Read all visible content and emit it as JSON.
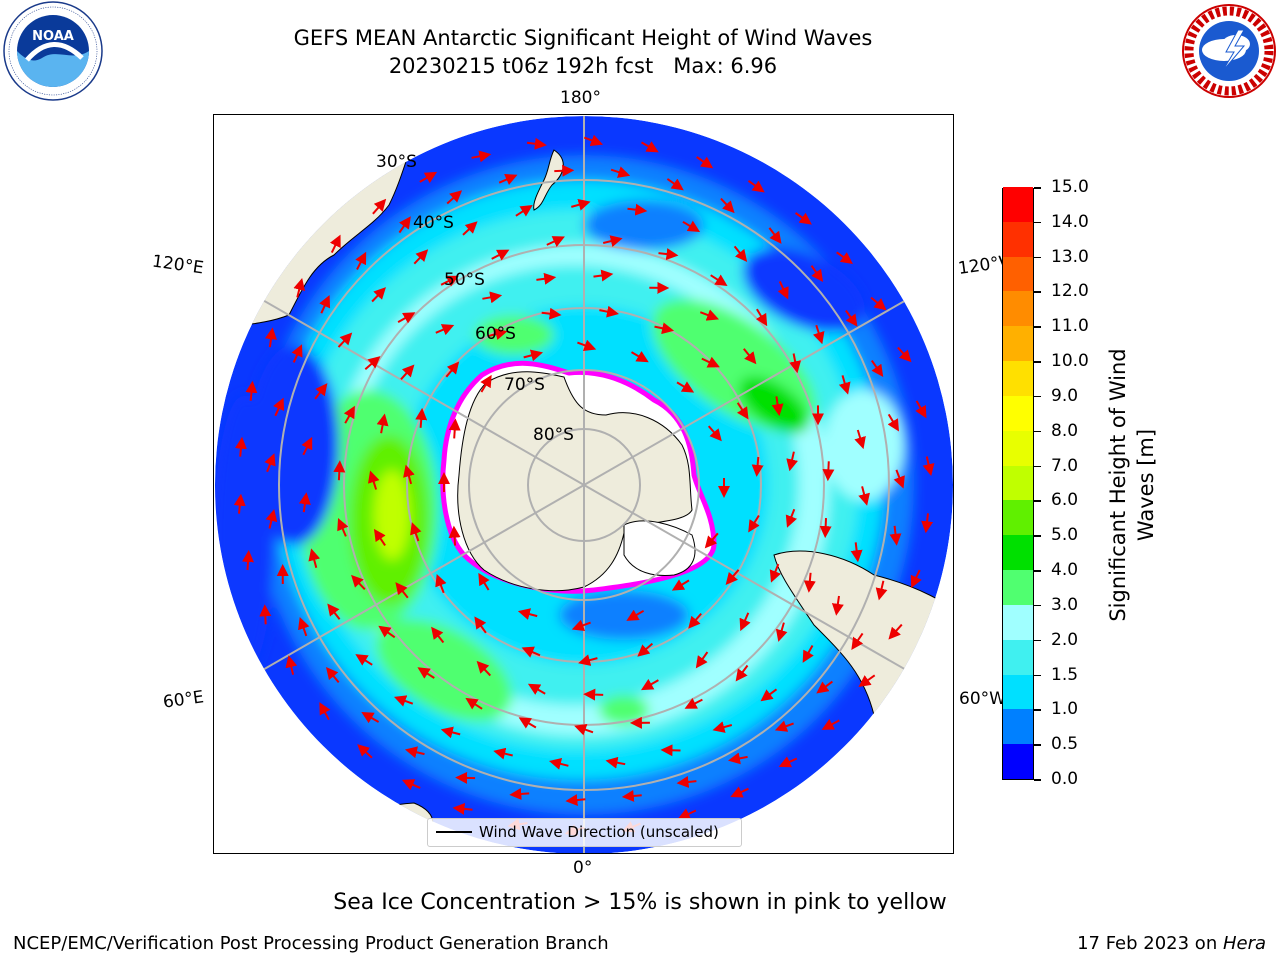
{
  "title_line1": "GEFS MEAN Antarctic Significant Height of Wind Waves",
  "title_line2": "20230215 t06z 192h fcst   Max: 6.96",
  "map": {
    "longitude_labels": {
      "top": "180°",
      "left_upper": "120°E",
      "right_upper": "120°W",
      "left_lower": "60°E",
      "right_lower": "60°W",
      "bottom": "0°"
    },
    "latitude_labels": [
      "30°S",
      "40°S",
      "50°S",
      "60°S",
      "70°S",
      "80°S"
    ],
    "legend_label": "Wind Wave Direction (unscaled)",
    "colors": {
      "land": "#eeecdc",
      "sea_ice": "#ffffff",
      "ice_edge": "#ff00ff",
      "arrow": "#ee0000",
      "grid": "#b0b0b0"
    }
  },
  "colorbar": {
    "label": "Significant Height of Wind Waves [m]",
    "ticks": [
      "0.0",
      "0.5",
      "1.0",
      "1.5",
      "2.0",
      "3.0",
      "4.0",
      "5.0",
      "6.0",
      "7.0",
      "8.0",
      "9.0",
      "10.0",
      "11.0",
      "12.0",
      "13.0",
      "14.0",
      "15.0"
    ],
    "colors": [
      "#0000ff",
      "#0080ff",
      "#00e0ff",
      "#40f0f0",
      "#a0ffff",
      "#50ff70",
      "#00e000",
      "#60f000",
      "#c0ff00",
      "#e8ff00",
      "#ffff00",
      "#ffe000",
      "#ffb000",
      "#ff8c00",
      "#ff6000",
      "#ff3000",
      "#ff0000"
    ]
  },
  "footer_note": "Sea Ice Concentration > 15% is shown in pink to yellow",
  "footer_left": "NCEP/EMC/Verification Post Processing Product Generation Branch",
  "footer_right_prefix": "17 Feb 2023 on ",
  "footer_right_machine": "Hera"
}
